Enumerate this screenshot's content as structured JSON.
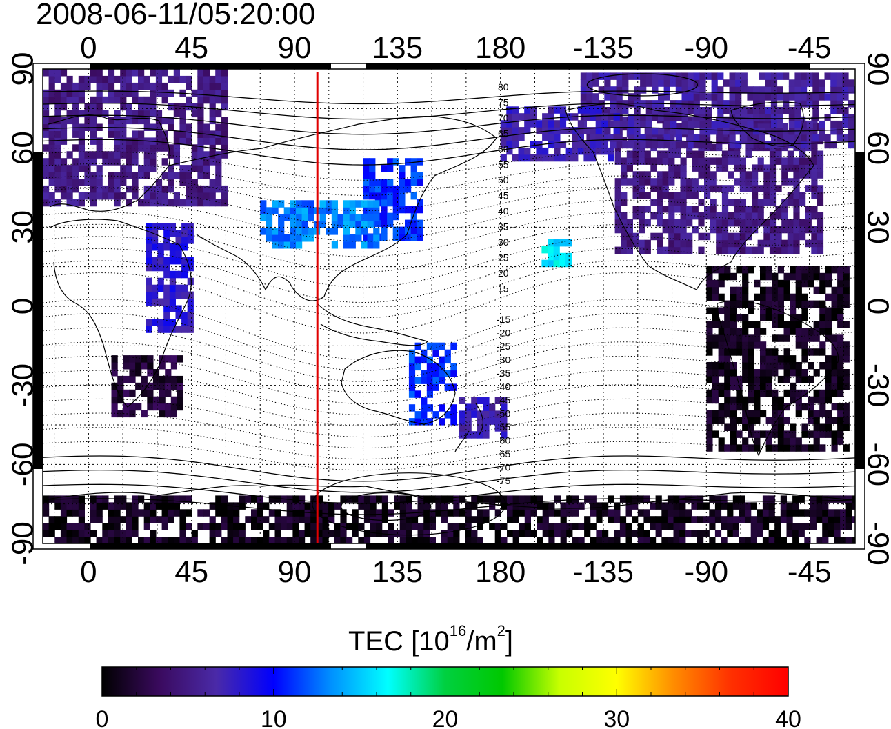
{
  "title": "2008-06-11/05:20:00",
  "map": {
    "top_lon_labels": [
      "0",
      "45",
      "90",
      "135",
      "180",
      "-135",
      "-90",
      "-45"
    ],
    "bottom_lon_labels": [
      "0",
      "45",
      "90",
      "135",
      "180",
      "-135",
      "-90",
      "-45"
    ],
    "left_lat_labels": [
      "90",
      "60",
      "30",
      "0",
      "-30",
      "-60",
      "-90"
    ],
    "right_lat_labels": [
      "90",
      "60",
      "30",
      "0",
      "-30",
      "-60",
      "-90"
    ],
    "lon_ticks": [
      0,
      45,
      90,
      135,
      180,
      225,
      270,
      315
    ],
    "lat_ticks": [
      90,
      60,
      30,
      0,
      -30,
      -60,
      -90
    ],
    "lon_range": [
      -20,
      335
    ],
    "lat_range": [
      -90,
      90
    ],
    "marker_meridian_lon": 100,
    "marker_color": "#e00000",
    "contour_labels_north": [
      "80",
      "75",
      "70",
      "65",
      "60",
      "55",
      "50",
      "45",
      "40",
      "35",
      "30",
      "25",
      "20",
      "15"
    ],
    "contour_labels_south": [
      "-15",
      "-20",
      "-25",
      "-30",
      "-35",
      "-40",
      "-45",
      "-50",
      "-55",
      "-60",
      "-65",
      "-70",
      "-75"
    ]
  },
  "colorbar": {
    "title_prefix": "TEC  [10",
    "title_exp1": "16",
    "title_mid": "/m",
    "title_exp2": "2",
    "title_suffix": "]",
    "labels": [
      "0",
      "10",
      "20",
      "30",
      "40"
    ],
    "values": [
      0,
      10,
      20,
      30,
      40
    ],
    "stops": [
      "#000000",
      "#3a0a5e",
      "#4a2aa8",
      "#0000ff",
      "#0090ff",
      "#00ffff",
      "#00d040",
      "#00c800",
      "#c8ff00",
      "#ffff00",
      "#ff8c00",
      "#ff3000",
      "#ff0000"
    ]
  },
  "tec_regions": [
    {
      "name": "europe",
      "lon": [
        -20,
        60
      ],
      "lat": [
        38,
        88
      ],
      "tec": 5
    },
    {
      "name": "north-america",
      "lon": [
        230,
        320
      ],
      "lat": [
        20,
        70
      ],
      "tec": 5
    },
    {
      "name": "canada-arctic",
      "lon": [
        215,
        335
      ],
      "lat": [
        60,
        88
      ],
      "tec": 6
    },
    {
      "name": "alaska-west",
      "lon": [
        180,
        230
      ],
      "lat": [
        55,
        75
      ],
      "tec": 7
    },
    {
      "name": "south-america",
      "lon": [
        270,
        330
      ],
      "lat": [
        -55,
        15
      ],
      "tec": 1
    },
    {
      "name": "africa-south",
      "lon": [
        10,
        40
      ],
      "lat": [
        -42,
        -20
      ],
      "tec": 2
    },
    {
      "name": "africa-east",
      "lon": [
        25,
        45
      ],
      "lat": [
        -10,
        30
      ],
      "tec": 8
    },
    {
      "name": "japan-east-asia",
      "lon": [
        120,
        145
      ],
      "lat": [
        25,
        55
      ],
      "tec": 11
    },
    {
      "name": "tibet-china",
      "lon": [
        75,
        125
      ],
      "lat": [
        22,
        40
      ],
      "tec": 13
    },
    {
      "name": "australia-east",
      "lon": [
        140,
        160
      ],
      "lat": [
        -45,
        -15
      ],
      "tec": 11
    },
    {
      "name": "new-zealand",
      "lon": [
        162,
        182
      ],
      "lat": [
        -50,
        -35
      ],
      "tec": 7
    },
    {
      "name": "antarctica",
      "lon": [
        -20,
        335
      ],
      "lat": [
        -90,
        -72
      ],
      "tec": 1
    },
    {
      "name": "hawaii",
      "lon": [
        198,
        210
      ],
      "lat": [
        15,
        25
      ],
      "tec": 16
    }
  ]
}
